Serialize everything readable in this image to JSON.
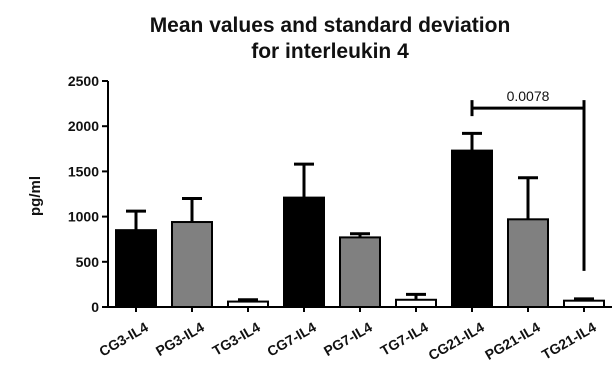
{
  "chart_data": {
    "type": "bar",
    "title_line1": "Mean values and standard deviation",
    "title_line2": "for interleukin 4",
    "ylabel": "pg/ml",
    "xlabel": "",
    "ylim": [
      0,
      2500
    ],
    "yticks": [
      0,
      500,
      1000,
      1500,
      2000,
      2500
    ],
    "grid": false,
    "colors": {
      "black": "#000000",
      "gray": "#808080",
      "white": "#ffffff"
    },
    "categories": [
      "CG3-IL4",
      "PG3-IL4",
      "TG3-IL4",
      "CG7-IL4",
      "PG7-IL4",
      "TG7-IL4",
      "CG21-IL4",
      "PG21-IL4",
      "TG21-IL4"
    ],
    "values": [
      850,
      940,
      60,
      1210,
      770,
      80,
      1730,
      970,
      70
    ],
    "sd": [
      210,
      260,
      20,
      370,
      40,
      60,
      190,
      460,
      20
    ],
    "bar_fill": [
      "black",
      "gray",
      "white",
      "black",
      "gray",
      "white",
      "black",
      "gray",
      "white"
    ],
    "annotation": {
      "text": "0.0078",
      "from_category": "CG21-IL4",
      "to_category": "TG21-IL4",
      "bracket_y": 2200,
      "drop_to": 400
    }
  }
}
